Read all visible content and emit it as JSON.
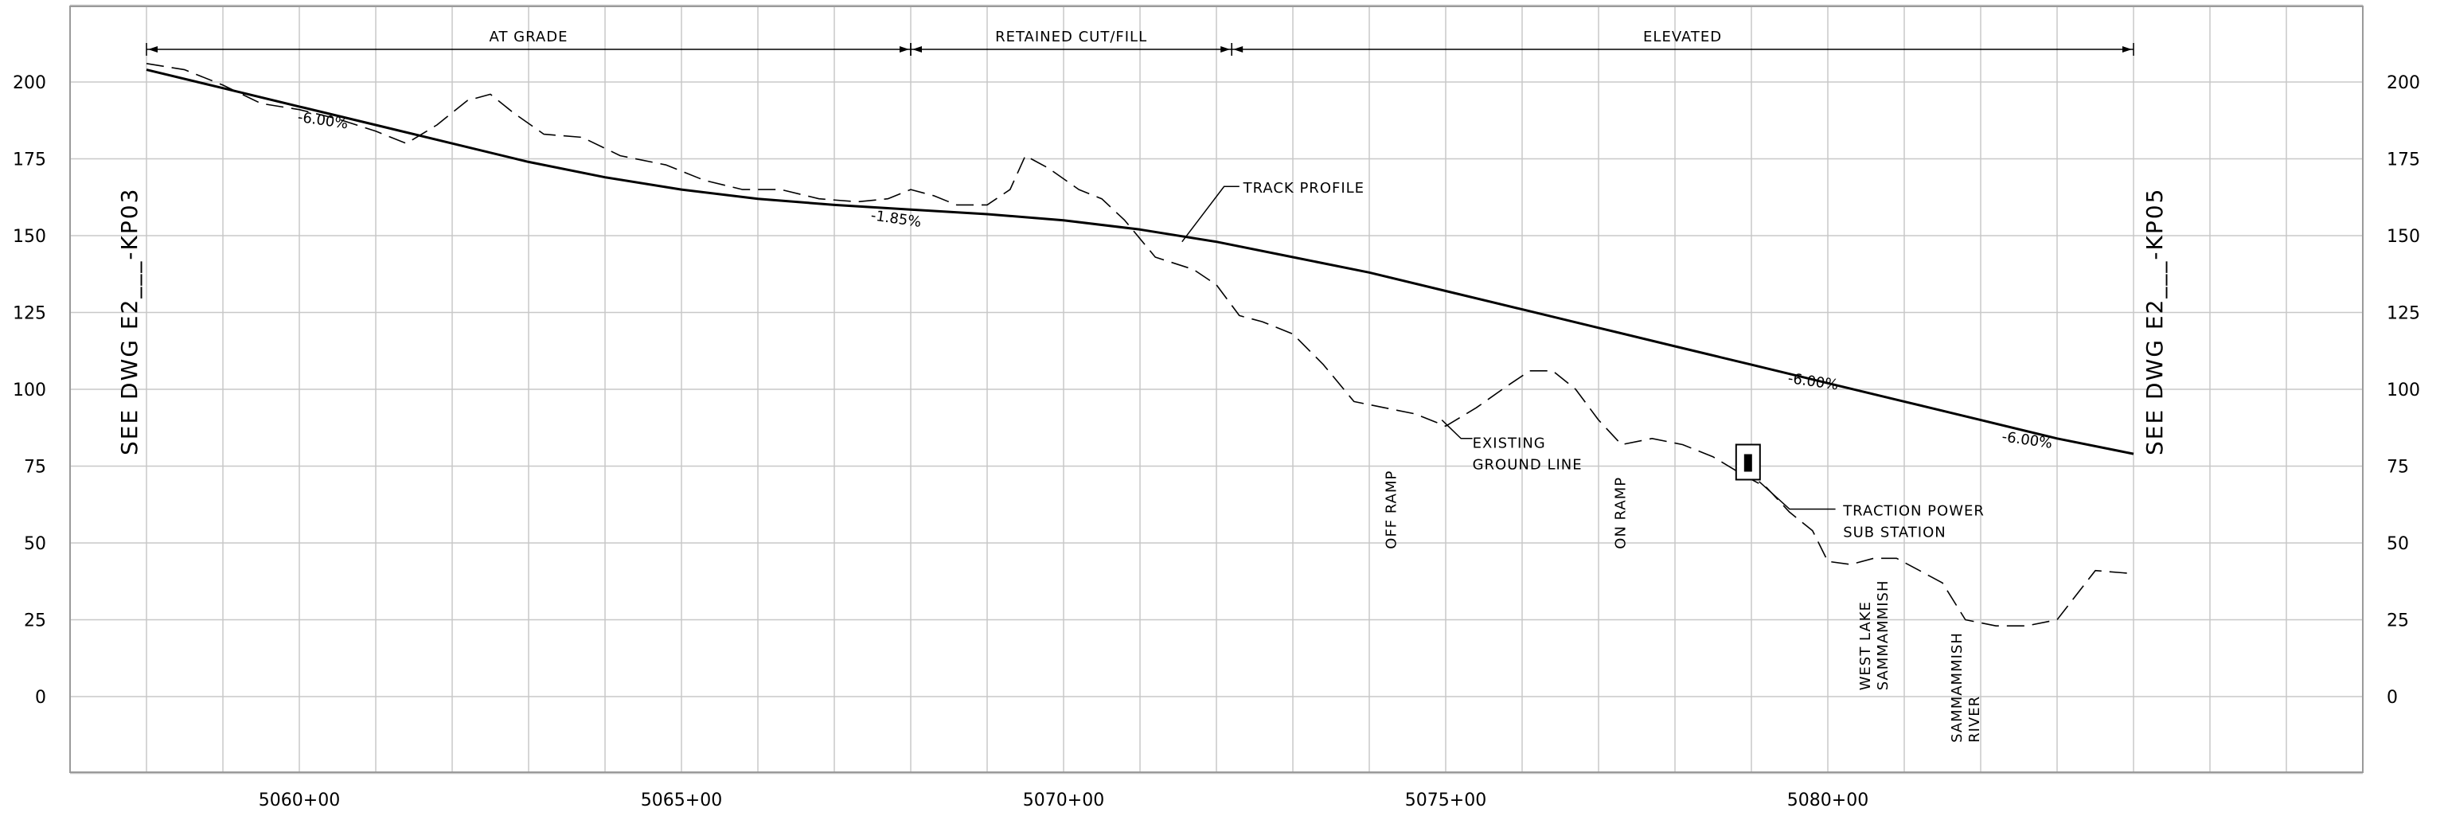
{
  "chart_data": {
    "type": "line",
    "x_unit": "station",
    "y_ticks": [
      0,
      25,
      50,
      75,
      100,
      125,
      150,
      175,
      200
    ],
    "ylim": [
      -25,
      225
    ],
    "x_ticks": [
      5060,
      5065,
      5070,
      5075,
      5080
    ],
    "x_tick_labels": [
      "5060+00",
      "5065+00",
      "5070+00",
      "5075+00",
      "5080+00"
    ],
    "xlim": [
      5057,
      5087
    ],
    "series": [
      {
        "name": "TRACK PROFILE",
        "style": "solid",
        "x": [
          5058.0,
          5059.0,
          5060.0,
          5061.0,
          5062.0,
          5063.0,
          5064.0,
          5065.0,
          5066.0,
          5067.0,
          5068.0,
          5069.0,
          5070.0,
          5071.0,
          5072.0,
          5073.0,
          5074.0,
          5075.0,
          5076.0,
          5077.0,
          5078.0,
          5079.0,
          5080.0,
          5081.0,
          5082.0,
          5083.0,
          5084.0
        ],
        "y": [
          204,
          198,
          192,
          186,
          180,
          174,
          169,
          165,
          162,
          160,
          158.5,
          157,
          155,
          152,
          148,
          143,
          138,
          132,
          126,
          120,
          114,
          108,
          102,
          96,
          90,
          84,
          79
        ]
      },
      {
        "name": "EXISTING GROUND LINE",
        "style": "dashed",
        "x": [
          5058.0,
          5058.5,
          5059.0,
          5059.5,
          5060.0,
          5060.5,
          5061.0,
          5061.4,
          5061.8,
          5062.2,
          5062.5,
          5062.8,
          5063.2,
          5063.7,
          5064.2,
          5064.8,
          5065.3,
          5065.8,
          5066.3,
          5066.8,
          5067.3,
          5067.7,
          5068.0,
          5068.3,
          5068.6,
          5069.0,
          5069.3,
          5069.5,
          5069.8,
          5070.2,
          5070.5,
          5070.8,
          5071.2,
          5071.7,
          5072.0,
          5072.3,
          5072.6,
          5073.0,
          5073.4,
          5073.8,
          5074.2,
          5074.6,
          5075.0,
          5075.4,
          5075.8,
          5076.1,
          5076.4,
          5076.7,
          5077.0,
          5077.3,
          5077.7,
          5078.1,
          5078.5,
          5078.9,
          5079.2,
          5079.5,
          5079.8,
          5080.0,
          5080.3,
          5080.6,
          5080.9,
          5081.2,
          5081.5,
          5081.8,
          5082.2,
          5082.6,
          5083.0,
          5083.5,
          5084.0
        ],
        "y": [
          206,
          204,
          199,
          193,
          191,
          188,
          184,
          180,
          186,
          194,
          196,
          190,
          183,
          182,
          176,
          173,
          168,
          165,
          165,
          162,
          161,
          162,
          165,
          163,
          160,
          160,
          165,
          176,
          172,
          165,
          162,
          155,
          143,
          139,
          134,
          124,
          122,
          118,
          108,
          96,
          94,
          92,
          88,
          94,
          101,
          106,
          106,
          100,
          90,
          82,
          84,
          82,
          78,
          72,
          68,
          60,
          54,
          44,
          43,
          45,
          45,
          41,
          37,
          25,
          23,
          23,
          25,
          41,
          40
        ]
      }
    ],
    "grades": [
      {
        "label": "-6.00%",
        "x": 5060.3,
        "y": 186
      },
      {
        "label": "-1.85%",
        "x": 5067.8,
        "y": 154
      },
      {
        "label": "-6.00%",
        "x": 5079.8,
        "y": 101
      },
      {
        "label": "-6.00%",
        "x": 5082.6,
        "y": 82
      }
    ],
    "segments": [
      {
        "label": "AT GRADE",
        "x_start": 5058.0,
        "x_end": 5068.0
      },
      {
        "label": "RETAINED CUT/FILL",
        "x_start": 5068.0,
        "x_end": 5072.2
      },
      {
        "label": "ELEVATED",
        "x_start": 5072.2,
        "x_end": 5084.0
      }
    ],
    "annotations": {
      "track_profile": "TRACK PROFILE",
      "ground_line_1": "EXISTING",
      "ground_line_2": "GROUND LINE",
      "tps_1": "TRACTION POWER",
      "tps_2": "SUB STATION",
      "off_ramp": "OFF RAMP",
      "on_ramp": "ON RAMP",
      "wl_1": "WEST LAKE",
      "wl_2": "SAMMAMMISH",
      "sr_1": "SAMMAMMISH",
      "sr_2": "RIVER"
    },
    "see_dwg_left": "SEE DWG E2___-KP03",
    "see_dwg_right": "SEE DWG E2___-KP05"
  }
}
